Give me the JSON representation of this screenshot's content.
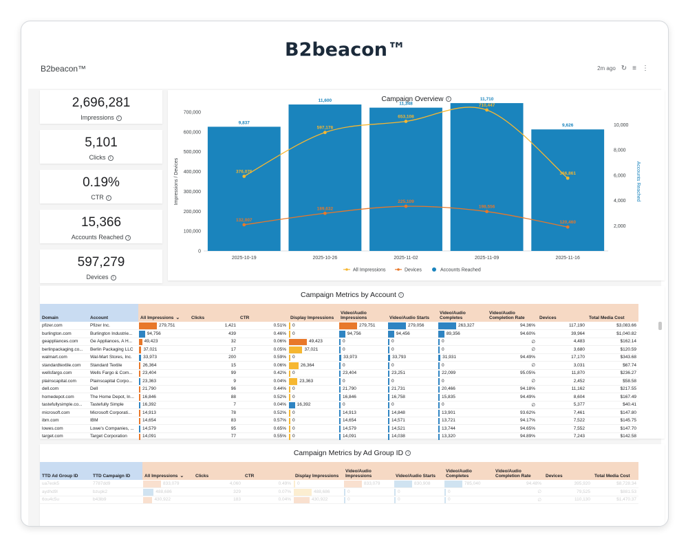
{
  "page_title": "B2beacon™",
  "report_name": "B2beacon™",
  "toolbar": {
    "updated": "2m ago",
    "refresh_icon": "refresh-icon",
    "filter_icon": "filter-icon",
    "more_icon": "more-vert-icon"
  },
  "kpis": [
    {
      "value": "2,696,281",
      "label": "Impressions"
    },
    {
      "value": "5,101",
      "label": "Clicks"
    },
    {
      "value": "0.19%",
      "label": "CTR"
    },
    {
      "value": "15,366",
      "label": "Accounts Reached"
    },
    {
      "value": "597,279",
      "label": "Devices"
    }
  ],
  "chart": {
    "title": "Campaign Overview",
    "ylabel_left": "Impressions / Devices",
    "ylabel_right": "Accounts Reached",
    "legend": [
      "All Impressions",
      "Devices",
      "Accounts Reached"
    ],
    "colors": {
      "bars": "#1a84bd",
      "impressions": "#f6b731",
      "devices": "#e8782a",
      "bar_label": "#1a84bd"
    }
  },
  "chart_data": {
    "type": "bar",
    "categories": [
      "2025-10-19",
      "2025-10-26",
      "2025-11-02",
      "2025-11-09",
      "2025-11-16"
    ],
    "ylim_left": [
      0,
      700000
    ],
    "yticks_left": [
      "0",
      "100,000",
      "200,000",
      "300,000",
      "400,000",
      "500,000",
      "600,000",
      "700,000"
    ],
    "ylim_right": [
      0,
      11000
    ],
    "yticks_right": [
      "2,000",
      "4,000",
      "6,000",
      "8,000",
      "10,000"
    ],
    "series": [
      {
        "name": "Accounts Reached",
        "type": "bar",
        "axis": "right",
        "values": [
          9837,
          11600,
          11348,
          11710,
          9626
        ],
        "labels": [
          "9,837",
          "11,600",
          "11,348",
          "11,710",
          "9,626"
        ]
      },
      {
        "name": "All Impressions",
        "type": "line",
        "axis": "left",
        "values": [
          376076,
          597178,
          653108,
          710447,
          366861
        ],
        "labels": [
          "376,076",
          "597,178",
          "653,108",
          "710,447",
          "366,861"
        ]
      },
      {
        "name": "Devices",
        "type": "line",
        "axis": "left",
        "values": [
          132007,
          189632,
          225109,
          198556,
          120460
        ],
        "labels": [
          "132,007",
          "189,632",
          "225,109",
          "198,556",
          "120,460"
        ]
      }
    ]
  },
  "account_table": {
    "title": "Campaign Metrics by Account",
    "columns": [
      "Domain",
      "Account",
      "All Impressions",
      "Clicks",
      "CTR",
      "Display Impressions",
      "Video/Audio Impressions",
      "Video/Audio Starts",
      "Video/Audio Completes",
      "Video/Audio Completion Rate",
      "Devices",
      "Total Media Cost"
    ],
    "rows": [
      [
        "pfizer.com",
        "Pfizer Inc.",
        "279,751",
        "1,421",
        "0.51%",
        "0",
        "279,751",
        "279,056",
        "263,327",
        "94.36%",
        "117,190",
        "$3,083.66"
      ],
      [
        "burlington.com",
        "Burlington Industrie...",
        "94,756",
        "439",
        "0.46%",
        "0",
        "94,756",
        "94,456",
        "89,356",
        "94.60%",
        "39,964",
        "$1,040.82"
      ],
      [
        "geappliances.com",
        "Ge Appliances, A H...",
        "49,423",
        "32",
        "0.06%",
        "49,423",
        "0",
        "0",
        "0",
        "∅",
        "4,483",
        "$162.14"
      ],
      [
        "berlinpackaging.co...",
        "Berlin Packaging LLC",
        "37,021",
        "17",
        "0.05%",
        "37,021",
        "0",
        "0",
        "0",
        "∅",
        "3,680",
        "$120.59"
      ],
      [
        "walmart.com",
        "Wal-Mart Stores, Inc.",
        "33,973",
        "200",
        "0.59%",
        "0",
        "33,973",
        "33,793",
        "31,931",
        "94.49%",
        "17,170",
        "$343.68"
      ],
      [
        "standardtextile.com",
        "Standard Textile",
        "26,364",
        "15",
        "0.06%",
        "26,364",
        "0",
        "0",
        "0",
        "∅",
        "3,031",
        "$67.74"
      ],
      [
        "wellsfargo.com",
        "Wells Fargo & Com...",
        "23,404",
        "99",
        "0.42%",
        "0",
        "23,404",
        "23,251",
        "22,099",
        "95.05%",
        "11,870",
        "$236.27"
      ],
      [
        "plainscapital.com",
        "Plainscapital Corpo...",
        "23,363",
        "9",
        "0.04%",
        "23,363",
        "0",
        "0",
        "0",
        "∅",
        "2,452",
        "$58.58"
      ],
      [
        "dell.com",
        "Dell",
        "21,790",
        "96",
        "0.44%",
        "0",
        "21,790",
        "21,731",
        "20,466",
        "94.18%",
        "11,162",
        "$217.55"
      ],
      [
        "homedepot.com",
        "The Home Depot, In...",
        "16,846",
        "88",
        "0.52%",
        "0",
        "16,846",
        "16,758",
        "15,835",
        "94.49%",
        "8,604",
        "$167.49"
      ],
      [
        "tastefullysimple.co...",
        "Tastefully Simple",
        "16,392",
        "7",
        "0.04%",
        "16,392",
        "0",
        "0",
        "0",
        "∅",
        "5,377",
        "$40.41"
      ],
      [
        "microsoft.com",
        "Microsoft Corporati...",
        "14,913",
        "78",
        "0.52%",
        "0",
        "14,913",
        "14,848",
        "13,901",
        "93.62%",
        "7,461",
        "$147.80"
      ],
      [
        "ibm.com",
        "IBM",
        "14,654",
        "83",
        "0.57%",
        "0",
        "14,654",
        "14,571",
        "13,721",
        "94.17%",
        "7,522",
        "$145.75"
      ],
      [
        "lowes.com",
        "Lowe's Companies, ...",
        "14,579",
        "95",
        "0.65%",
        "0",
        "14,579",
        "14,521",
        "13,744",
        "94.65%",
        "7,552",
        "$147.70"
      ],
      [
        "target.com",
        "Target Corporation",
        "14,091",
        "77",
        "0.55%",
        "0",
        "14,091",
        "14,038",
        "13,320",
        "94.89%",
        "7,243",
        "$142.58"
      ]
    ]
  },
  "adgroup_table": {
    "title": "Campaign Metrics by Ad Group ID",
    "columns": [
      "TTD Ad Group ID",
      "TTD Campaign ID",
      "All Impressions",
      "Clicks",
      "CTR",
      "Display Impressions",
      "Video/Audio Impressions",
      "Video/Audio Starts",
      "Video/Audio Completes",
      "Video/Audio Completion Rate",
      "Devices",
      "Total Media Cost"
    ],
    "rows": [
      [
        "ua7eok5",
        "7787dd9",
        "833,079",
        "4,060",
        "0.49%",
        "0",
        "833,079",
        "830,908",
        "785,040",
        "94.48%",
        "395,920",
        "$8,728.34"
      ],
      [
        "aydhd9l",
        "bzupk2",
        "488,686",
        "329",
        "0.07%",
        "488,686",
        "0",
        "0",
        "0",
        "∅",
        "79,525",
        "$881.53"
      ],
      [
        "6ou4c5u",
        "b43lb9",
        "430,922",
        "183",
        "0.04%",
        "430,922",
        "0",
        "0",
        "0",
        "∅",
        "110,130",
        "$1,470.37"
      ]
    ]
  }
}
